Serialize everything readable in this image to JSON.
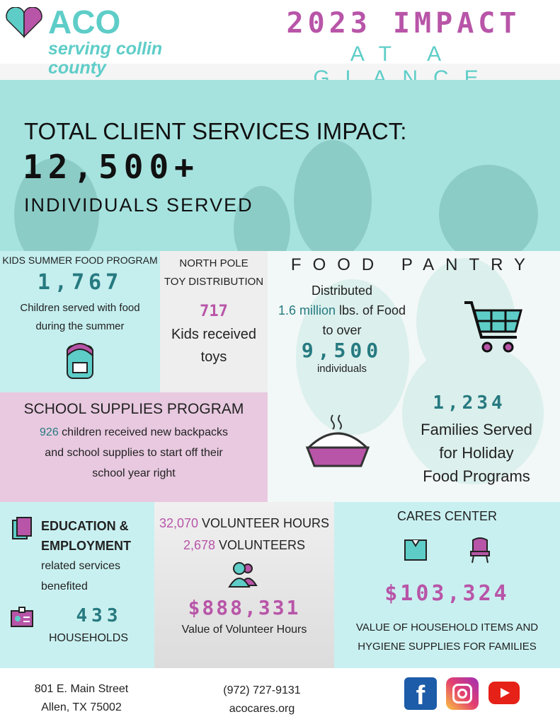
{
  "colors": {
    "purple": "#b855a8",
    "teal": "#5ecdc8",
    "dark_teal": "#267a80",
    "banner": "#a6e3df"
  },
  "header": {
    "logo": "ACO",
    "tagline_1": "serving collin",
    "tagline_2": "county",
    "title": "2023 IMPACT",
    "subtitle": "AT A GLANCE"
  },
  "banner": {
    "heading": "TOTAL CLIENT SERVICES IMPACT:",
    "number": "12,500+",
    "caption": "INDIVIDUALS SERVED"
  },
  "kids_summer": {
    "title": "KIDS SUMMER FOOD PROGRAM",
    "number": "1,767",
    "line1": "Children served with food",
    "line2": "during the summer",
    "icon": "backpack-icon"
  },
  "north_pole": {
    "title1": "NORTH POLE",
    "title2": "TOY DISTRIBUTION",
    "number": "717",
    "line1": "Kids received",
    "line2": "toys"
  },
  "food_pantry": {
    "title": "FOOD PANTRY",
    "line1": "Distributed",
    "amount": "1.6 million",
    "line2": " lbs. of Food",
    "line3": "to over",
    "number": "9,500",
    "line4": "individuals",
    "holiday_number": "1,234",
    "holiday1": "Families Served",
    "holiday2": "for Holiday",
    "holiday3": "Food Programs",
    "icons": [
      "shopping-cart-icon",
      "pie-icon"
    ]
  },
  "school_supplies": {
    "title": "SCHOOL SUPPLIES PROGRAM",
    "count": "926",
    "line1": " children received new backpacks",
    "line2": "and school supplies to start off their",
    "line3": "school year right"
  },
  "education": {
    "title1": "EDUCATION &",
    "title2": "EMPLOYMENT",
    "line1": "related services",
    "line2": "benefited",
    "number": "433",
    "caption": "HOUSEHOLDS"
  },
  "volunteers": {
    "hours": "32,070",
    "hours_label": " VOLUNTEER HOURS",
    "count": "2,678",
    "count_label": " VOLUNTEERS",
    "value": "$888,331",
    "caption": "Value of Volunteer Hours"
  },
  "cares": {
    "title": "CARES CENTER",
    "value": "$103,324",
    "line1": "VALUE OF HOUSEHOLD ITEMS AND",
    "line2": "HYGIENE SUPPLIES FOR FAMILIES"
  },
  "footer": {
    "address1": "801 E. Main Street",
    "address2": "Allen, TX 75002",
    "phone": "(972) 727-9131",
    "website": "acocares.org",
    "social": [
      "facebook",
      "instagram",
      "youtube"
    ]
  }
}
